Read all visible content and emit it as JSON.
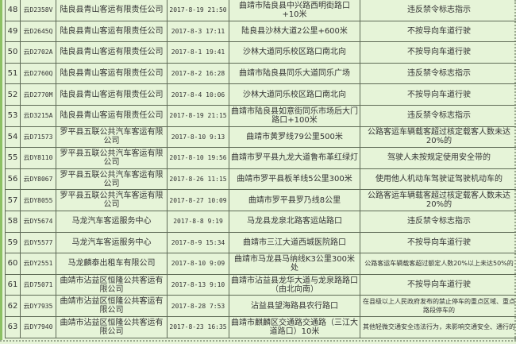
{
  "colors": {
    "background": "#e6f4d8",
    "border": "#5f6b57",
    "left_accent": "#8cc063"
  },
  "rows": [
    {
      "no": "48",
      "plate": "云D2358V",
      "company": "陆良县青山客运有限责任公司",
      "time": "2017-8-19 21:50",
      "location": "曲靖市陆良县中兴路西明街路口+10米",
      "violation": "违反禁令标志指示"
    },
    {
      "no": "49",
      "plate": "云D2645Q",
      "company": "陆良县青山客运有限责任公司",
      "time": "2017-8-3 17:11",
      "location": "陆良县沙林大道2公里+600米",
      "violation": "不按导向车道行驶"
    },
    {
      "no": "50",
      "plate": "云D2702A",
      "company": "陆良县青山客运有限责任公司",
      "time": "2017-8-1 19:41",
      "location": "沙林大道同乐校区路口南北向",
      "violation": "不按导向车道行驶"
    },
    {
      "no": "51",
      "plate": "云D2760Q",
      "company": "陆良县青山客运有限责任公司",
      "time": "2017-8-2 16:28",
      "location": "曲靖市陆良县同乐大道同乐广场",
      "violation": "违反禁令标志指示"
    },
    {
      "no": "52",
      "plate": "云D2770M",
      "company": "陆良县青山客运有限责任公司",
      "time": "2017-8-4 10:06",
      "location": "沙林大道同乐校区路口南北向",
      "violation": "不按导向车道行驶"
    },
    {
      "no": "53",
      "plate": "云D3215A",
      "company": "陆良县青山客运有限责任公司",
      "time": "2017-8-19 21:15",
      "location": "曲靖市陆良县如意街同乐市场后大门路口+100米",
      "violation": "违反禁令标志指示"
    },
    {
      "no": "54",
      "plate": "云D71573",
      "company": "罗平县五联公共汽车客运有限公司",
      "time": "2017-8-10 9:13",
      "location": "曲靖市黄罗线79公里500米",
      "violation": "公路客运车辆载客超过核定载客人数未达20%的"
    },
    {
      "no": "55",
      "plate": "云DY8110",
      "company": "罗平县五联公共汽车客运有限公司",
      "time": "2017-8-10 19:56",
      "location": "曲靖市罗平县九龙大道鲁布革红绿灯",
      "violation": "驾驶人未按规定使用安全带的"
    },
    {
      "no": "56",
      "plate": "云DY8067",
      "company": "罗平县五联公共汽车客运有限公司",
      "time": "2017-8-26 11:15",
      "location": "曲靖市罗平县板羊线5公里300米",
      "violation": "使用他人机动车驾驶证驾驶机动车的"
    },
    {
      "no": "57",
      "plate": "云DY8055",
      "company": "罗平县五联公共汽车客运有限公司",
      "time": "2017-8-27 10:09",
      "location": "曲靖市罗平县罗乃线8公里",
      "violation": "公路客运车辆载客超过核定载客人数未达20%的"
    },
    {
      "no": "58",
      "plate": "云DY5674",
      "company": "马龙汽车客运服务中心",
      "time": "2017-8-8 9:19",
      "location": "马龙县龙泉北路客运站路口",
      "violation": "违反禁令标志指示"
    },
    {
      "no": "59",
      "plate": "云DY5577",
      "company": "马龙汽车客运服务中心",
      "time": "2017-8-9 15:34",
      "location": "曲靖市三江大道西城医院路口",
      "violation": "不按导向车道行驶"
    },
    {
      "no": "60",
      "plate": "云DY2551",
      "company": "马龙麟泰出租车有限公司",
      "time": "2017-8-10 9:09",
      "location": "曲靖市马龙县马纳线K3公里300米处",
      "violation": "公路客运车辆载客超过额定人数20%以上未达50%的"
    },
    {
      "no": "61",
      "plate": "云D75071",
      "company": "曲靖市沾益区恒隆公共客运有限公司",
      "time": "2017-8-13 9:10",
      "location": "曲靖市沾益县龙华大道与龙泉路路口（由北向南）",
      "violation": "不按导向车道行驶"
    },
    {
      "no": "62",
      "plate": "云DY7935",
      "company": "曲靖市沾益区恒隆公共客运有限公司",
      "time": "2017-8-28 7:53",
      "location": "沾益县望海路县农行路口",
      "violation": "在县级以上人民政府发布的禁止停车的重点区域、重点路段停车的"
    },
    {
      "no": "63",
      "plate": "云DY7940",
      "company": "曲靖市沾益区恒隆公共客运有限公司",
      "time": "2017-8-23 16:35",
      "location": "曲靖市麒麟区交通路交通路（三江大道路口）10米",
      "violation": "其他轻微交通安全违法行为，未影响交通安全、通行的"
    }
  ]
}
